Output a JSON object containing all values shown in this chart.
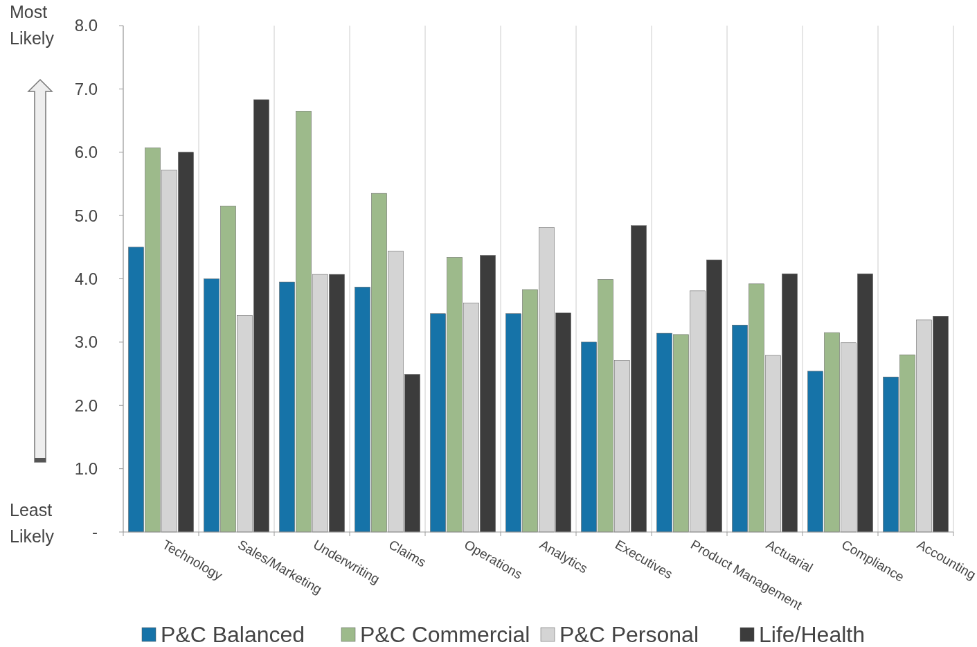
{
  "chart_data": {
    "type": "bar",
    "categories": [
      "Technology",
      "Sales/Marketing",
      "Underwriting",
      "Claims",
      "Operations",
      "Analytics",
      "Executives",
      "Product Management",
      "Actuarial",
      "Compliance",
      "Accounting"
    ],
    "series": [
      {
        "name": "P&C Balanced",
        "color": "#1673a8",
        "values": [
          4.5,
          4.0,
          3.95,
          3.87,
          3.45,
          3.45,
          3.0,
          3.14,
          3.27,
          2.54,
          2.45
        ]
      },
      {
        "name": "P&C Commercial",
        "color": "#9dba8b",
        "values": [
          6.07,
          5.15,
          6.65,
          5.35,
          4.34,
          3.83,
          3.99,
          3.12,
          3.92,
          3.15,
          2.8
        ]
      },
      {
        "name": "P&C Personal",
        "color": "#d4d4d4",
        "values": [
          5.72,
          3.42,
          4.07,
          4.44,
          3.62,
          4.81,
          2.71,
          3.81,
          2.79,
          2.99,
          3.35
        ]
      },
      {
        "name": "Life/Health",
        "color": "#3c3c3c",
        "values": [
          6.0,
          6.83,
          4.07,
          2.49,
          4.37,
          3.46,
          4.84,
          4.3,
          4.08,
          4.08,
          3.41
        ]
      }
    ],
    "ylim": [
      0,
      8
    ],
    "yticks": [
      {
        "value": 0,
        "label": "-"
      },
      {
        "value": 1,
        "label": "1.0"
      },
      {
        "value": 2,
        "label": "2.0"
      },
      {
        "value": 3,
        "label": "3.0"
      },
      {
        "value": 4,
        "label": "4.0"
      },
      {
        "value": 5,
        "label": "5.0"
      },
      {
        "value": 6,
        "label": "6.0"
      },
      {
        "value": 7,
        "label": "7.0"
      },
      {
        "value": 8,
        "label": "8.0"
      }
    ],
    "grid": "x",
    "legend": "bottom",
    "annotations": [
      "Most Likely",
      "Least Likely"
    ]
  }
}
